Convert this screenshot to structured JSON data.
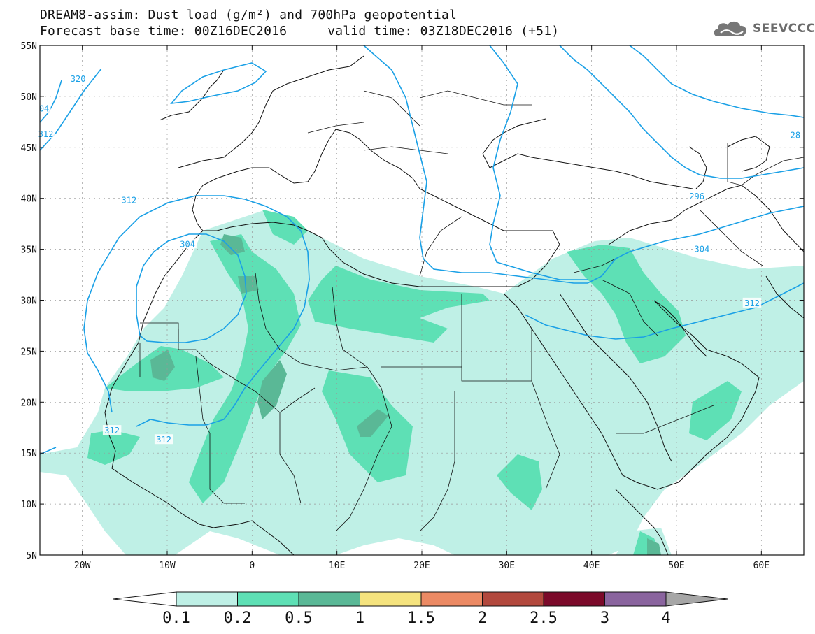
{
  "title": {
    "line1": "DREAM8-assim: Dust load (g/m²) and 700hPa geopotential",
    "forecast_base": "Forecast base time: 00Z16DEC2016",
    "valid_time": "valid time: 03Z18DEC2016 (+51)"
  },
  "logo": {
    "text": "SEEVCCC",
    "icon": "cloud-icon"
  },
  "map": {
    "lon_range": [
      -25,
      65
    ],
    "lat_range": [
      5,
      55
    ],
    "lon_ticks": [
      {
        "value": -20,
        "label": "20W"
      },
      {
        "value": -10,
        "label": "10W"
      },
      {
        "value": 0,
        "label": "0"
      },
      {
        "value": 10,
        "label": "10E"
      },
      {
        "value": 20,
        "label": "20E"
      },
      {
        "value": 30,
        "label": "30E"
      },
      {
        "value": 40,
        "label": "40E"
      },
      {
        "value": 50,
        "label": "50E"
      },
      {
        "value": 60,
        "label": "60E"
      }
    ],
    "lat_ticks": [
      {
        "value": 55,
        "label": "55N"
      },
      {
        "value": 50,
        "label": "50N"
      },
      {
        "value": 45,
        "label": "45N"
      },
      {
        "value": 40,
        "label": "40N"
      },
      {
        "value": 35,
        "label": "35N"
      },
      {
        "value": 30,
        "label": "30N"
      },
      {
        "value": 25,
        "label": "25N"
      },
      {
        "value": 20,
        "label": "20N"
      },
      {
        "value": 15,
        "label": "15N"
      },
      {
        "value": 10,
        "label": "10N"
      },
      {
        "value": 5,
        "label": "5N"
      }
    ],
    "grid": true,
    "contour_color": "#1aa0e6",
    "contour_labels": [
      {
        "text": "320",
        "lon": -20.5,
        "lat": 51.7
      },
      {
        "text": "04",
        "lon": -24.5,
        "lat": 48.8
      },
      {
        "text": "312",
        "lon": -24.3,
        "lat": 46.3
      },
      {
        "text": "312",
        "lon": -14.5,
        "lat": 39.8
      },
      {
        "text": "304",
        "lon": -7.6,
        "lat": 35.5
      },
      {
        "text": "312",
        "lon": -16.5,
        "lat": 17.2
      },
      {
        "text": "312",
        "lon": -10.4,
        "lat": 16.3
      },
      {
        "text": "28",
        "lon": 64.0,
        "lat": 46.2
      },
      {
        "text": "296",
        "lon": 52.4,
        "lat": 40.2
      },
      {
        "text": "304",
        "lon": 53.0,
        "lat": 35.0
      },
      {
        "text": "312",
        "lon": 58.9,
        "lat": 29.7
      }
    ]
  },
  "colorbar": {
    "levels": [
      "0.1",
      "0.2",
      "0.5",
      "1",
      "1.5",
      "2",
      "2.5",
      "3",
      "4"
    ],
    "colors": [
      "#bff0e6",
      "#5ee0b5",
      "#5ab896",
      "#f5e37e",
      "#ec8a64",
      "#b2483d",
      "#7b0a2a",
      "#8a649e"
    ],
    "under_color": "#ffffff",
    "over_color": "#a6a6a6"
  }
}
